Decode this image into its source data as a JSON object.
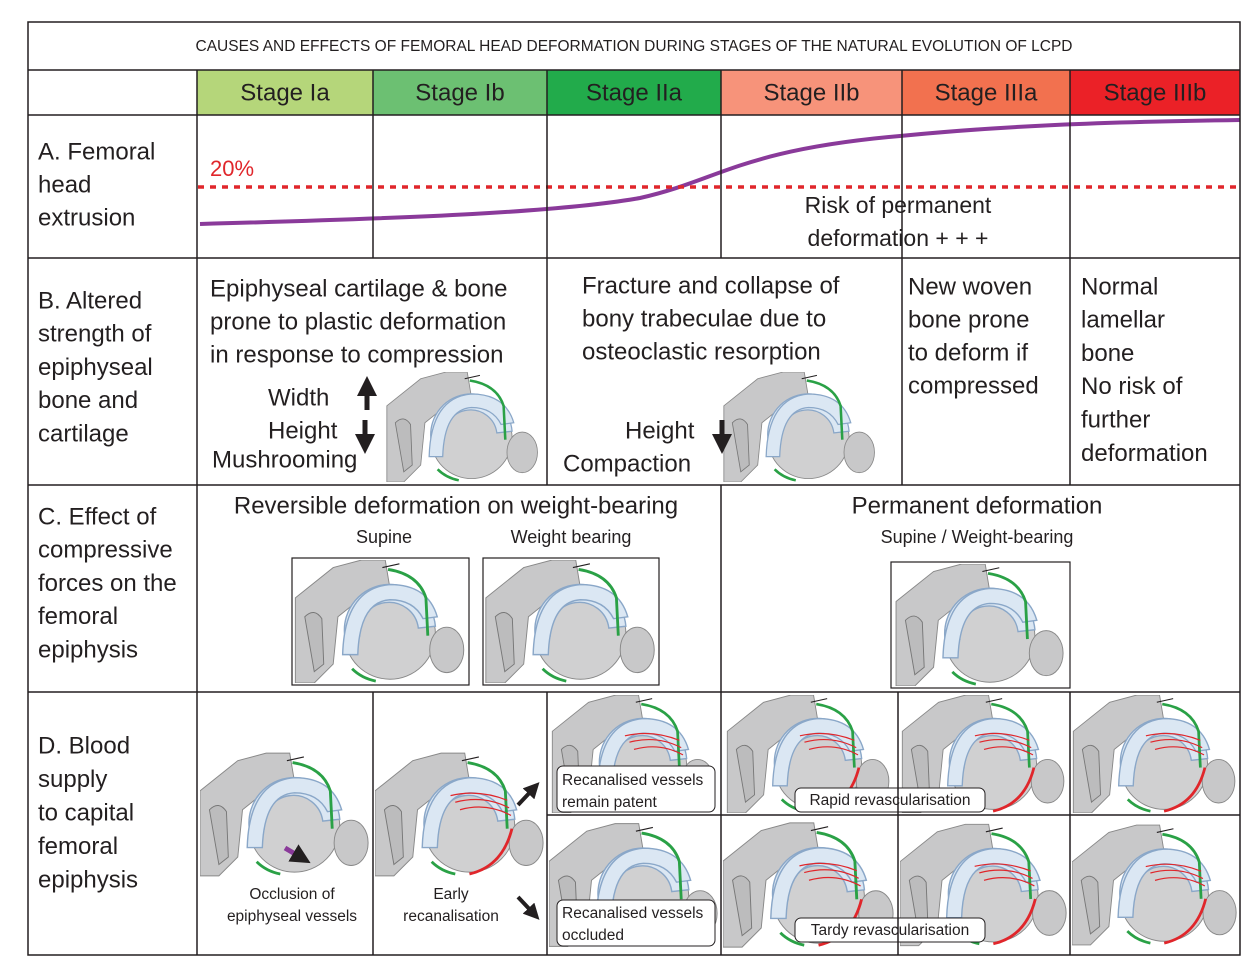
{
  "title": "CAUSES AND EFFECTS OF FEMORAL HEAD DEFORMATION DURING STAGES OF THE NATURAL EVOLUTION OF LCPD",
  "stages": [
    "Stage Ia",
    "Stage Ib",
    "Stage IIa",
    "Stage IIb",
    "Stage IIIa",
    "Stage IIIb"
  ],
  "row_a": {
    "label_lines": [
      "A. Femoral",
      "head",
      "extrusion"
    ],
    "threshold_label": "20%",
    "note_lines": [
      "Risk of permanent",
      "deformation + + +"
    ]
  },
  "row_b": {
    "label_lines": [
      "B. Altered",
      "strength of",
      "epiphyseal",
      "bone and",
      "cartilage"
    ],
    "cells": [
      {
        "lines": [
          "Epiphyseal cartilage & bone",
          "prone to plastic deformation",
          "in response to compression"
        ],
        "effects": [
          "Width",
          "Height",
          "Mushrooming"
        ]
      },
      {
        "lines": [
          "Fracture and collapse of",
          "bony trabeculae due to",
          "osteoclastic resorption"
        ],
        "effects": [
          "Height",
          "Compaction"
        ]
      },
      {
        "lines": [
          "New woven",
          "bone prone",
          "to deform if",
          "compressed"
        ]
      },
      {
        "lines": [
          "Normal",
          "lamellar",
          "bone",
          "No risk of",
          "further",
          "deformation"
        ]
      }
    ]
  },
  "row_c": {
    "label_lines": [
      "C. Effect of",
      "compressive",
      "forces on the",
      "femoral",
      "epiphysis"
    ],
    "reversible": {
      "heading": "Reversible deformation on weight-bearing",
      "views": [
        "Supine",
        "Weight bearing"
      ]
    },
    "permanent": {
      "heading": "Permanent deformation",
      "views": [
        "Supine / Weight-bearing"
      ]
    }
  },
  "row_d": {
    "label_lines": [
      "D. Blood",
      "supply",
      "to capital",
      "femoral",
      "epiphysis"
    ],
    "captions": [
      [
        "Occlusion of",
        "epiphyseal vessels"
      ],
      [
        "Early",
        "recanalisation"
      ],
      [
        "Recanalised vessels",
        "remain patent"
      ],
      [
        "Rapid revascularisation"
      ],
      [
        "Recanalised vessels",
        "occluded"
      ],
      [
        "Tardy revascularisation"
      ]
    ]
  }
}
